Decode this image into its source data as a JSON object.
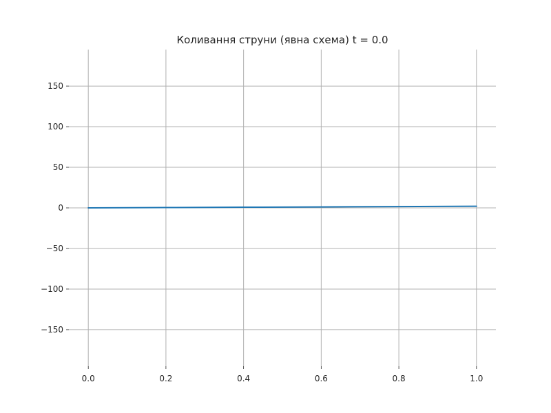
{
  "chart_data": {
    "type": "line",
    "title": "Коливання струни (явна схема) t = 0.0",
    "xlabel": "",
    "ylabel": "",
    "xlim": [
      -0.05,
      1.05
    ],
    "ylim": [
      -195,
      195
    ],
    "grid": true,
    "x_ticks": [
      0.0,
      0.2,
      0.4,
      0.6,
      0.8,
      1.0
    ],
    "x_tick_labels": [
      "0.0",
      "0.2",
      "0.4",
      "0.6",
      "0.8",
      "1.0"
    ],
    "y_ticks": [
      150,
      100,
      50,
      0,
      -50,
      -100,
      -150
    ],
    "y_tick_labels": [
      "150",
      "100",
      "50",
      "0",
      "−50",
      "−100",
      "−150"
    ],
    "series": [
      {
        "color": "#1f77b4",
        "x": [
          0.0,
          0.2,
          0.4,
          0.6,
          0.8,
          1.0
        ],
        "y": [
          0.0,
          0.4,
          0.8,
          1.2,
          1.6,
          2.0
        ]
      }
    ]
  }
}
